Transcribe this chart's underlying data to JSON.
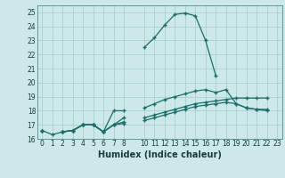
{
  "xlabel": "Humidex (Indice chaleur)",
  "bg_color": "#cce8e8",
  "grid_color": "#aacece",
  "line_color": "#1a6e6a",
  "xlim": [
    -0.5,
    23.5
  ],
  "ylim": [
    16,
    25.5
  ],
  "yticks": [
    16,
    17,
    18,
    19,
    20,
    21,
    22,
    23,
    24,
    25
  ],
  "xticks": [
    0,
    1,
    2,
    3,
    4,
    5,
    6,
    7,
    8,
    10,
    11,
    12,
    13,
    14,
    15,
    16,
    17,
    18,
    19,
    20,
    21,
    22,
    23
  ],
  "series": [
    [
      16.6,
      16.3,
      16.5,
      16.6,
      17.0,
      17.0,
      16.5,
      17.0,
      17.5,
      null,
      22.5,
      23.2,
      24.1,
      24.85,
      24.95,
      24.75,
      23.0,
      20.5,
      null,
      null,
      null,
      null,
      null
    ],
    [
      16.6,
      null,
      16.5,
      16.6,
      17.0,
      17.0,
      16.5,
      18.0,
      18.0,
      null,
      18.2,
      18.5,
      18.8,
      19.0,
      19.2,
      19.4,
      19.5,
      19.3,
      19.5,
      18.5,
      18.2,
      18.1,
      18.1
    ],
    [
      16.6,
      null,
      16.5,
      16.6,
      17.0,
      17.0,
      16.5,
      17.0,
      17.2,
      null,
      17.5,
      17.7,
      17.9,
      18.1,
      18.3,
      18.5,
      18.6,
      18.7,
      18.8,
      18.9,
      18.9,
      18.9,
      18.9
    ],
    [
      16.6,
      null,
      16.5,
      16.6,
      17.0,
      17.0,
      16.5,
      17.0,
      17.1,
      null,
      17.3,
      17.5,
      17.7,
      17.9,
      18.1,
      18.3,
      18.4,
      18.5,
      18.6,
      18.5,
      18.2,
      18.1,
      18.0
    ]
  ]
}
